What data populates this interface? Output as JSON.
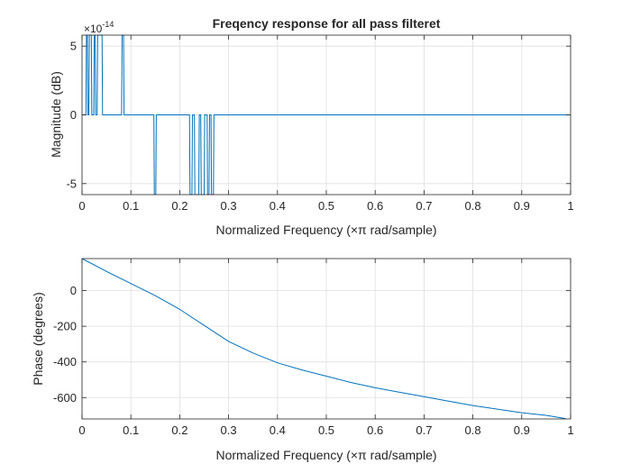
{
  "figure": {
    "background": "#ffffff",
    "line_color": "#0072bd",
    "grid_color": "#dfdfdf",
    "axis_color": "#262626"
  },
  "chart_data": [
    {
      "type": "line",
      "title": "Freqency response for all pass filteret",
      "xlabel": "Normalized Frequency  (×π rad/sample)",
      "ylabel": "Magnitude (dB)",
      "exponent_label": "×10",
      "exponent_value": "-14",
      "xlim": [
        0,
        1
      ],
      "ylim": [
        -5.8,
        5.8
      ],
      "xticks": [
        0,
        0.1,
        0.2,
        0.3,
        0.4,
        0.5,
        0.6,
        0.7,
        0.8,
        0.9,
        1
      ],
      "xtick_labels": [
        "0",
        "0.1",
        "0.2",
        "0.3",
        "0.4",
        "0.5",
        "0.6",
        "0.7",
        "0.8",
        "0.9",
        "1"
      ],
      "yticks": [
        -5,
        0,
        5
      ],
      "ytick_labels": [
        "-5",
        "0",
        "5"
      ],
      "grid": true,
      "series": [
        {
          "name": "magnitude",
          "x": [
            0,
            0.008,
            0.009,
            0.011,
            0.012,
            0.014,
            0.015,
            0.019,
            0.02,
            0.024,
            0.025,
            0.027,
            0.028,
            0.031,
            0.032,
            0.034,
            0.035,
            0.041,
            0.042,
            0.045,
            0.046,
            0.081,
            0.082,
            0.085,
            0.086,
            0.147,
            0.148,
            0.151,
            0.152,
            0.22,
            0.221,
            0.225,
            0.226,
            0.23,
            0.231,
            0.239,
            0.24,
            0.243,
            0.244,
            0.25,
            0.251,
            0.256,
            0.257,
            0.26,
            0.261,
            0.264,
            0.265,
            0.269,
            0.27,
            0.273,
            0.274,
            1
          ],
          "y": [
            0,
            0,
            5.8,
            5.8,
            0,
            0,
            5.8,
            5.8,
            0,
            0,
            5.8,
            5.8,
            0,
            0,
            5.8,
            5.8,
            5.8,
            5.8,
            0,
            0,
            0,
            0,
            5.8,
            5.8,
            0,
            0,
            -5.8,
            -5.8,
            0,
            0,
            -5.8,
            -5.8,
            0,
            0,
            -5.8,
            -5.8,
            0,
            0,
            -5.8,
            -5.8,
            0,
            0,
            -5.8,
            -5.8,
            0,
            0,
            -5.8,
            -5.8,
            0,
            0,
            0,
            0
          ]
        }
      ]
    },
    {
      "type": "line",
      "title": "",
      "xlabel": "Normalized Frequency  (×π rad/sample)",
      "ylabel": "Phase (degrees)",
      "xlim": [
        0,
        1
      ],
      "ylim": [
        -720,
        180
      ],
      "xticks": [
        0,
        0.1,
        0.2,
        0.3,
        0.4,
        0.5,
        0.6,
        0.7,
        0.8,
        0.9,
        1
      ],
      "xtick_labels": [
        "0",
        "0.1",
        "0.2",
        "0.3",
        "0.4",
        "0.5",
        "0.6",
        "0.7",
        "0.8",
        "0.9",
        "1"
      ],
      "yticks": [
        -600,
        -400,
        -200,
        0
      ],
      "ytick_labels": [
        "-600",
        "-400",
        "-200",
        "0"
      ],
      "grid": true,
      "series": [
        {
          "name": "phase",
          "x": [
            0,
            0.05,
            0.1,
            0.15,
            0.2,
            0.25,
            0.3,
            0.35,
            0.4,
            0.45,
            0.5,
            0.55,
            0.6,
            0.65,
            0.7,
            0.75,
            0.8,
            0.85,
            0.9,
            0.95,
            0.99
          ],
          "y": [
            180,
            108,
            40,
            -28,
            -105,
            -195,
            -285,
            -350,
            -405,
            -445,
            -480,
            -515,
            -545,
            -570,
            -595,
            -620,
            -645,
            -665,
            -685,
            -700,
            -718
          ]
        }
      ]
    }
  ]
}
